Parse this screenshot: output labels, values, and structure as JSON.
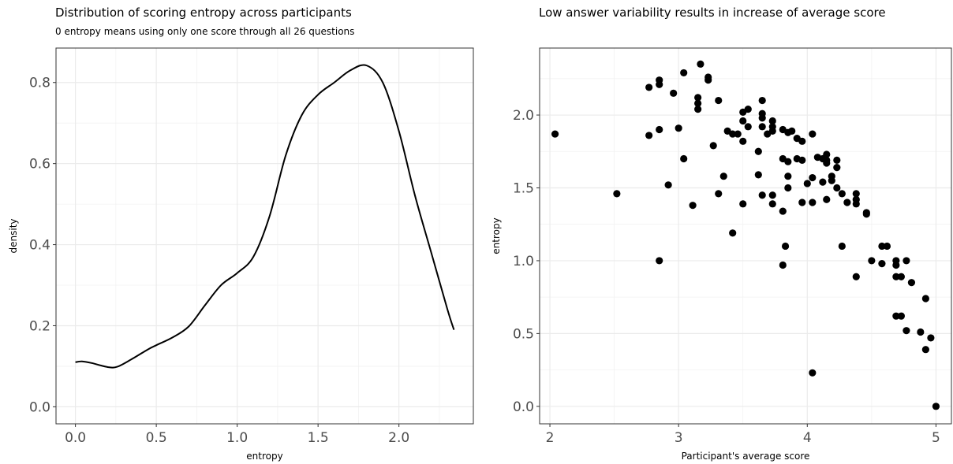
{
  "chart_data": [
    {
      "type": "line",
      "title": "Distribution of scoring entropy across participants",
      "subtitle": "0 entropy means using only one score through all 26 questions",
      "xlabel": "entropy",
      "ylabel": "density",
      "xlim": [
        -0.12,
        2.46
      ],
      "ylim": [
        -0.042,
        0.885
      ],
      "xticks": [
        0.0,
        0.5,
        1.0,
        1.5,
        2.0
      ],
      "xtick_labels": [
        "0.0",
        "0.5",
        "1.0",
        "1.5",
        "2.0"
      ],
      "yticks": [
        0.0,
        0.2,
        0.4,
        0.6,
        0.8
      ],
      "ytick_labels": [
        "0.0",
        "0.2",
        "0.4",
        "0.6",
        "0.8"
      ],
      "grid": true,
      "x": [
        0.0,
        0.04,
        0.1,
        0.2,
        0.26,
        0.35,
        0.45,
        0.5,
        0.6,
        0.7,
        0.8,
        0.9,
        1.0,
        1.1,
        1.2,
        1.3,
        1.4,
        1.5,
        1.6,
        1.7,
        1.8,
        1.9,
        2.0,
        2.1,
        2.2,
        2.3,
        2.34
      ],
      "y": [
        0.11,
        0.112,
        0.108,
        0.098,
        0.099,
        0.118,
        0.142,
        0.152,
        0.171,
        0.198,
        0.25,
        0.3,
        0.33,
        0.37,
        0.47,
        0.62,
        0.72,
        0.77,
        0.8,
        0.83,
        0.842,
        0.8,
        0.68,
        0.52,
        0.38,
        0.24,
        0.19
      ]
    },
    {
      "type": "scatter",
      "title": "Low answer variability results in increase of average score",
      "xlabel": "Participant's average score",
      "ylabel": "entropy",
      "xlim": [
        1.92,
        5.12
      ],
      "ylim": [
        -0.12,
        2.46
      ],
      "xticks": [
        2,
        3,
        4,
        5
      ],
      "xtick_labels": [
        "2",
        "3",
        "4",
        "5"
      ],
      "yticks": [
        0.0,
        0.5,
        1.0,
        1.5,
        2.0
      ],
      "ytick_labels": [
        "0.0",
        "0.5",
        "1.0",
        "1.5",
        "2.0"
      ],
      "grid": true,
      "points": [
        [
          2.04,
          1.87
        ],
        [
          2.52,
          1.46
        ],
        [
          2.77,
          2.19
        ],
        [
          2.85,
          2.24
        ],
        [
          2.85,
          2.21
        ],
        [
          2.77,
          1.86
        ],
        [
          2.85,
          1.9
        ],
        [
          2.85,
          1.0
        ],
        [
          2.92,
          1.52
        ],
        [
          2.96,
          2.15
        ],
        [
          3.0,
          1.91
        ],
        [
          3.04,
          2.29
        ],
        [
          3.04,
          1.7
        ],
        [
          3.11,
          1.38
        ],
        [
          3.15,
          2.12
        ],
        [
          3.15,
          2.08
        ],
        [
          3.15,
          2.04
        ],
        [
          3.17,
          2.35
        ],
        [
          3.23,
          2.26
        ],
        [
          3.23,
          2.24
        ],
        [
          3.27,
          1.79
        ],
        [
          3.31,
          2.1
        ],
        [
          3.31,
          1.46
        ],
        [
          3.35,
          1.58
        ],
        [
          3.38,
          1.89
        ],
        [
          3.42,
          1.87
        ],
        [
          3.42,
          1.19
        ],
        [
          3.46,
          1.87
        ],
        [
          3.5,
          2.02
        ],
        [
          3.5,
          1.96
        ],
        [
          3.5,
          1.82
        ],
        [
          3.5,
          1.39
        ],
        [
          3.54,
          2.04
        ],
        [
          3.54,
          1.92
        ],
        [
          3.62,
          1.75
        ],
        [
          3.62,
          1.59
        ],
        [
          3.65,
          2.1
        ],
        [
          3.65,
          2.01
        ],
        [
          3.65,
          1.98
        ],
        [
          3.65,
          1.92
        ],
        [
          3.65,
          1.45
        ],
        [
          3.69,
          1.87
        ],
        [
          3.73,
          1.96
        ],
        [
          3.73,
          1.92
        ],
        [
          3.73,
          1.89
        ],
        [
          3.73,
          1.45
        ],
        [
          3.73,
          1.39
        ],
        [
          3.81,
          1.9
        ],
        [
          3.81,
          1.7
        ],
        [
          3.81,
          1.34
        ],
        [
          3.81,
          0.97
        ],
        [
          3.83,
          1.1
        ],
        [
          3.85,
          1.88
        ],
        [
          3.85,
          1.68
        ],
        [
          3.85,
          1.58
        ],
        [
          3.85,
          1.5
        ],
        [
          3.88,
          1.89
        ],
        [
          3.92,
          1.84
        ],
        [
          3.92,
          1.7
        ],
        [
          3.96,
          1.82
        ],
        [
          3.96,
          1.69
        ],
        [
          3.96,
          1.4
        ],
        [
          4.0,
          1.53
        ],
        [
          4.04,
          1.87
        ],
        [
          4.04,
          1.57
        ],
        [
          4.04,
          1.4
        ],
        [
          4.04,
          0.23
        ],
        [
          4.08,
          1.71
        ],
        [
          4.12,
          1.7
        ],
        [
          4.12,
          1.54
        ],
        [
          4.15,
          1.73
        ],
        [
          4.15,
          1.69
        ],
        [
          4.15,
          1.67
        ],
        [
          4.15,
          1.42
        ],
        [
          4.19,
          1.58
        ],
        [
          4.19,
          1.55
        ],
        [
          4.23,
          1.69
        ],
        [
          4.23,
          1.64
        ],
        [
          4.23,
          1.5
        ],
        [
          4.27,
          1.46
        ],
        [
          4.27,
          1.1
        ],
        [
          4.31,
          1.4
        ],
        [
          4.38,
          1.46
        ],
        [
          4.38,
          1.42
        ],
        [
          4.38,
          1.39
        ],
        [
          4.38,
          0.89
        ],
        [
          4.46,
          1.33
        ],
        [
          4.46,
          1.32
        ],
        [
          4.5,
          1.0
        ],
        [
          4.58,
          1.1
        ],
        [
          4.58,
          0.98
        ],
        [
          4.62,
          1.1
        ],
        [
          4.69,
          1.0
        ],
        [
          4.69,
          0.97
        ],
        [
          4.69,
          0.89
        ],
        [
          4.69,
          0.62
        ],
        [
          4.73,
          0.89
        ],
        [
          4.73,
          0.62
        ],
        [
          4.77,
          1.0
        ],
        [
          4.77,
          0.52
        ],
        [
          4.81,
          0.85
        ],
        [
          4.88,
          0.51
        ],
        [
          4.92,
          0.74
        ],
        [
          4.92,
          0.39
        ],
        [
          4.96,
          0.47
        ],
        [
          5.0,
          0.0
        ]
      ]
    }
  ]
}
